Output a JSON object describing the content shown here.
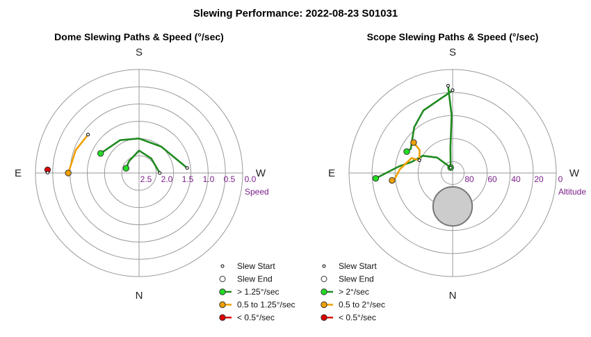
{
  "title": "Slewing Performance: 2022-08-23 S01031",
  "colors": {
    "fast": "#1f8a1f",
    "fast_marker": "#22dd22",
    "medium": "#f0a000",
    "medium_marker": "#f0a000",
    "slow": "#dd0000",
    "slow_marker": "#dd0000",
    "ring": "#999999",
    "tick": "#7a1e8a",
    "obstruction": "#cccccc"
  },
  "chart_data": [
    {
      "type": "polar",
      "title": "Dome Slewing Paths & Speed (°/sec)",
      "directions": {
        "top": "S",
        "left": "E",
        "right": "W",
        "bottom": "N"
      },
      "radial_label": "Speed",
      "radial_ticks": [
        "2.5",
        "2.0",
        "1.5",
        "1.0",
        "0.5",
        "0.0"
      ],
      "radial_axis": {
        "center_value": 3.0,
        "edge_value": 0.0,
        "rings": [
          2.5,
          2.0,
          1.5,
          1.0,
          0.5
        ]
      },
      "legend": [
        {
          "symbol": "start",
          "label": "Slew Start"
        },
        {
          "symbol": "end",
          "label": "Slew End"
        },
        {
          "symbol": "fast",
          "label": "> 1.25°/sec"
        },
        {
          "symbol": "medium",
          "label": "0.5 to 1.25°/sec"
        },
        {
          "symbol": "slow",
          "label": "< 0.5°/sec"
        }
      ],
      "paths": [
        {
          "speed_class": "fast",
          "points": [
            [
              84,
              1.6
            ],
            [
              40,
              2.0
            ],
            [
              0,
              2.0
            ],
            [
              -30,
              1.9
            ],
            [
              -63,
              1.75
            ]
          ]
        },
        {
          "speed_class": "fast",
          "points": [
            [
              90,
              2.4
            ],
            [
              40,
              2.45
            ],
            [
              0,
              2.35
            ],
            [
              -40,
              2.55
            ],
            [
              -70,
              2.6
            ]
          ]
        },
        {
          "speed_class": "medium",
          "points": [
            [
              -53,
              1.15
            ],
            [
              -70,
              1.05
            ],
            [
              -90,
              0.95
            ]
          ]
        },
        {
          "speed_class": "slow",
          "points": [
            [
              -88,
              0.35
            ]
          ]
        }
      ]
    },
    {
      "type": "polar",
      "title": "Scope Slewing Paths & Speed (°/sec)",
      "directions": {
        "top": "S",
        "left": "E",
        "right": "W",
        "bottom": "N"
      },
      "radial_label": "Altitude",
      "radial_ticks": [
        "80",
        "60",
        "40",
        "20",
        "0"
      ],
      "radial_axis": {
        "center_value": 90,
        "edge_value": 0,
        "rings": [
          80,
          60,
          40,
          20
        ]
      },
      "obstruction": {
        "azimuth": 180,
        "altitude": 61,
        "radius_deg": 17
      },
      "legend": [
        {
          "symbol": "start",
          "label": "Slew Start"
        },
        {
          "symbol": "end",
          "label": "Slew End"
        },
        {
          "symbol": "fast",
          "label": "> 2°/sec"
        },
        {
          "symbol": "medium",
          "label": "0.5 to 2°/sec"
        },
        {
          "symbol": "slow",
          "label": "< 0.5°/sec"
        }
      ],
      "paths": [
        {
          "speed_class": "fast",
          "points": [
            [
              0,
              18
            ],
            [
              -5,
              22
            ],
            [
              -25,
              30
            ],
            [
              -40,
              38
            ],
            [
              -60,
              48
            ],
            [
              -65,
              46
            ]
          ]
        },
        {
          "speed_class": "fast",
          "points": [
            [
              -3,
              14
            ],
            [
              -1,
              40
            ],
            [
              -5,
              68
            ],
            [
              -20,
              85
            ]
          ]
        },
        {
          "speed_class": "fast",
          "points": [
            [
              -20,
              85
            ],
            [
              -45,
              71
            ],
            [
              -60,
              60
            ],
            [
              -75,
              53
            ],
            [
              -83,
              43
            ],
            [
              -94,
              23
            ]
          ]
        },
        {
          "speed_class": "medium",
          "points": [
            [
              -69,
              59
            ],
            [
              -55,
              55
            ],
            [
              -52,
              47
            ]
          ]
        },
        {
          "speed_class": "medium",
          "points": [
            [
              -69,
              59
            ],
            [
              -70,
              52
            ],
            [
              -86,
              44
            ],
            [
              -95,
              40
            ],
            [
              -97,
              37
            ]
          ]
        }
      ]
    }
  ]
}
